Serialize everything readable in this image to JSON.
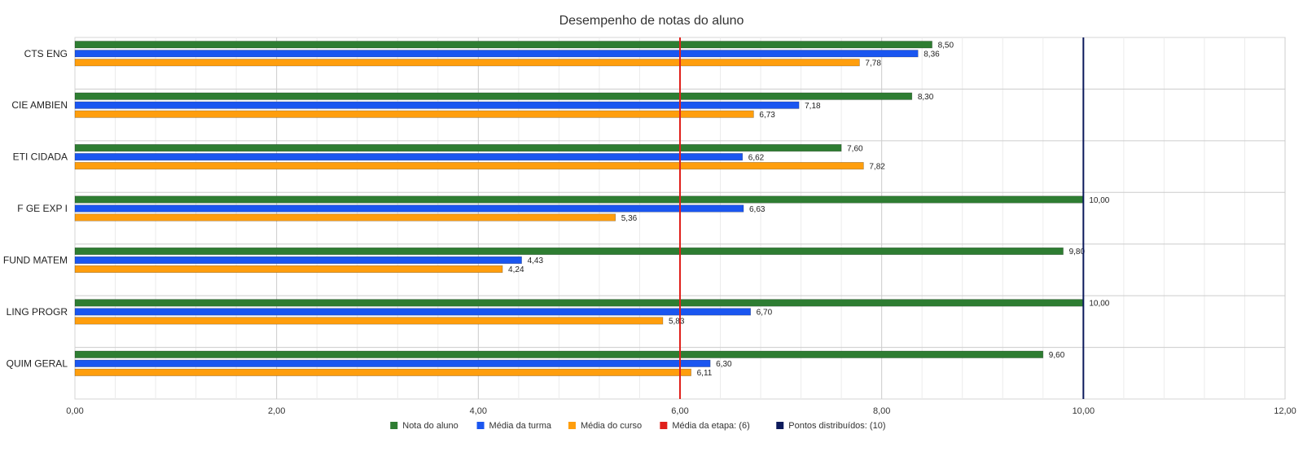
{
  "chart_data": {
    "type": "bar",
    "orientation": "horizontal",
    "title": "Desempenho de notas do aluno",
    "categories": [
      "CTS ENG",
      "CIE AMBIEN",
      "ETI CIDADA",
      "F GE EXP I",
      "FUND MATEM",
      "LING PROGR",
      "QUIM GERAL"
    ],
    "series": [
      {
        "name": "Nota do aluno",
        "color": "#2e7d32",
        "values": [
          8.5,
          8.3,
          7.6,
          10.0,
          9.8,
          10.0,
          9.6
        ],
        "labels": [
          "8,50",
          "8,30",
          "7,60",
          "10,00",
          "9,80",
          "10,00",
          "9,60"
        ]
      },
      {
        "name": "Média da turma",
        "color": "#1a56f0",
        "values": [
          8.36,
          7.18,
          6.62,
          6.63,
          4.43,
          6.7,
          6.3
        ],
        "labels": [
          "8,36",
          "7,18",
          "6,62",
          "6,63",
          "4,43",
          "6,70",
          "6,30"
        ]
      },
      {
        "name": "Média do curso",
        "color": "#ff9e0d",
        "values": [
          7.78,
          6.73,
          7.82,
          5.36,
          4.24,
          5.83,
          6.11
        ],
        "labels": [
          "7,78",
          "6,73",
          "7,82",
          "5,36",
          "4,24",
          "5,83",
          "6,11"
        ]
      }
    ],
    "reference_lines": [
      {
        "name": "Média da etapa: (6)",
        "value": 6,
        "color": "#e0201b"
      },
      {
        "name": "Pontos distribuídos: (10)",
        "value": 10,
        "color": "#0d1a5c"
      }
    ],
    "xlim": [
      0,
      12
    ],
    "xticks": [
      0,
      2,
      4,
      6,
      8,
      10,
      12
    ],
    "xtick_labels": [
      "0,00",
      "2,00",
      "4,00",
      "6,00",
      "8,00",
      "10,00",
      "12,00"
    ],
    "xlabel": "",
    "ylabel": "",
    "grid": true,
    "legend_position": "bottom"
  }
}
